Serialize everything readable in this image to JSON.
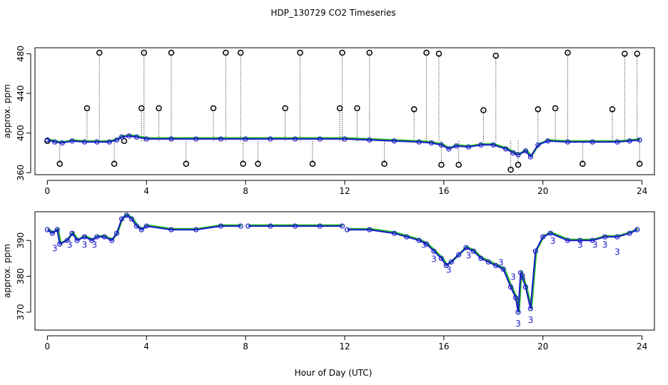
{
  "title": "HDP_130729  CO2 Timeseries",
  "xlabel": "Hour of Day (UTC)",
  "colors": {
    "raw": "#000000",
    "series_green": "#22bb22",
    "series_blue": "#1a1acc"
  },
  "chart_data": [
    {
      "type": "scatter",
      "panel": "top",
      "ylabel": "approx. ppm",
      "xlim": [
        -0.5,
        24.5
      ],
      "ylim": [
        358,
        486
      ],
      "x_ticks": [
        0,
        4,
        8,
        12,
        16,
        20,
        24
      ],
      "y_ticks": [
        360,
        400,
        440,
        480
      ],
      "grid": false,
      "legend": "none",
      "series": [
        {
          "marker": "black-circle",
          "x": [
            0,
            0.5,
            1.6,
            2.1,
            2.7,
            3.1,
            3.8,
            3.9,
            4.5,
            5.0,
            5.6,
            6.7,
            7.2,
            7.8,
            7.9,
            8.5,
            9.6,
            10.2,
            10.7,
            11.8,
            11.9,
            12.5,
            13.0,
            13.6,
            14.8,
            15.3,
            15.8,
            15.9,
            16.6,
            17.6,
            18.1,
            18.7,
            19.0,
            19.8,
            20.5,
            21.0,
            21.6,
            22.8,
            23.3,
            23.8,
            23.9
          ],
          "y": [
            392,
            369,
            425,
            481,
            369,
            392,
            425,
            481,
            425,
            481,
            369,
            425,
            481,
            481,
            369,
            369,
            425,
            481,
            369,
            425,
            481,
            425,
            481,
            369,
            424,
            481,
            480,
            368,
            368,
            423,
            478,
            363,
            368,
            424,
            425,
            481,
            369,
            424,
            480,
            480,
            369
          ]
        },
        {
          "marker": "blue-green-circle-line",
          "x": [
            0,
            0.3,
            0.6,
            1.0,
            1.5,
            2.0,
            2.5,
            2.8,
            3.0,
            3.3,
            3.6,
            4.0,
            5,
            6,
            7,
            8,
            9,
            10,
            11,
            12,
            13,
            14,
            15,
            15.5,
            15.9,
            16.2,
            16.5,
            17.0,
            17.5,
            18.0,
            18.5,
            18.8,
            19.0,
            19.3,
            19.5,
            19.8,
            20.2,
            21,
            22,
            23,
            23.5,
            23.9
          ],
          "y": [
            393,
            391,
            390,
            392,
            391,
            391,
            391,
            393,
            396,
            397,
            396,
            394,
            394,
            394,
            394,
            394,
            394,
            394,
            394,
            394,
            393,
            392,
            391,
            390,
            388,
            384,
            387,
            386,
            388,
            388,
            384,
            380,
            378,
            382,
            376,
            388,
            392,
            391,
            391,
            391,
            392,
            393
          ]
        }
      ]
    },
    {
      "type": "line",
      "panel": "bottom",
      "ylabel": "approx. ppm",
      "xlim": [
        -0.5,
        24.5
      ],
      "ylim": [
        365,
        398
      ],
      "x_ticks": [
        0,
        4,
        8,
        12,
        16,
        20,
        24
      ],
      "y_ticks": [
        370,
        380,
        390
      ],
      "grid": false,
      "legend": "none",
      "gaps_after_x": [
        7.9,
        11.9
      ],
      "outlier_label": "3",
      "series": [
        {
          "marker": "blue-green-circle-line",
          "x": [
            0,
            0.2,
            0.4,
            0.5,
            0.8,
            1.0,
            1.2,
            1.5,
            1.8,
            2.0,
            2.3,
            2.6,
            2.8,
            3.0,
            3.2,
            3.4,
            3.6,
            3.8,
            4.0,
            5,
            6,
            7,
            7.8,
            8.1,
            9,
            10,
            11,
            11.9,
            12.1,
            13,
            14,
            14.5,
            15.0,
            15.3,
            15.6,
            15.9,
            16.1,
            16.3,
            16.6,
            16.9,
            17.2,
            17.5,
            17.8,
            18.1,
            18.4,
            18.7,
            18.9,
            19.0,
            19.1,
            19.3,
            19.5,
            19.7,
            20.0,
            20.3,
            21,
            21.5,
            22,
            22.5,
            23,
            23.5,
            23.8
          ],
          "y": [
            393,
            392,
            393,
            389,
            390,
            392,
            390,
            391,
            390,
            391,
            391,
            390,
            392,
            396,
            397,
            396,
            394,
            393,
            394,
            393,
            393,
            394,
            394,
            394,
            394,
            394,
            394,
            394,
            393,
            393,
            392,
            391,
            390,
            389,
            387,
            385,
            383,
            384,
            386,
            388,
            387,
            385,
            384,
            383,
            382,
            377,
            374,
            370,
            381,
            377,
            371,
            387,
            391,
            392,
            390,
            390,
            390,
            391,
            391,
            392,
            393
          ]
        }
      ],
      "labeled_points": [
        {
          "x": 0.3,
          "y": 388,
          "label": "3"
        },
        {
          "x": 0.9,
          "y": 389,
          "label": "3"
        },
        {
          "x": 1.5,
          "y": 389,
          "label": "3"
        },
        {
          "x": 1.9,
          "y": 389,
          "label": "3"
        },
        {
          "x": 15.2,
          "y": 389,
          "label": "3"
        },
        {
          "x": 15.6,
          "y": 385,
          "label": "3"
        },
        {
          "x": 16.2,
          "y": 382,
          "label": "3"
        },
        {
          "x": 17.0,
          "y": 386,
          "label": "3"
        },
        {
          "x": 18.3,
          "y": 384,
          "label": "3"
        },
        {
          "x": 18.8,
          "y": 380,
          "label": "3"
        },
        {
          "x": 19.0,
          "y": 367,
          "label": "3"
        },
        {
          "x": 19.2,
          "y": 380,
          "label": "3"
        },
        {
          "x": 19.5,
          "y": 368,
          "label": "3"
        },
        {
          "x": 20.4,
          "y": 390,
          "label": "3"
        },
        {
          "x": 21.5,
          "y": 389,
          "label": "3"
        },
        {
          "x": 22.1,
          "y": 389,
          "label": "3"
        },
        {
          "x": 22.5,
          "y": 389,
          "label": "3"
        },
        {
          "x": 23.0,
          "y": 387,
          "label": "3"
        }
      ]
    }
  ]
}
